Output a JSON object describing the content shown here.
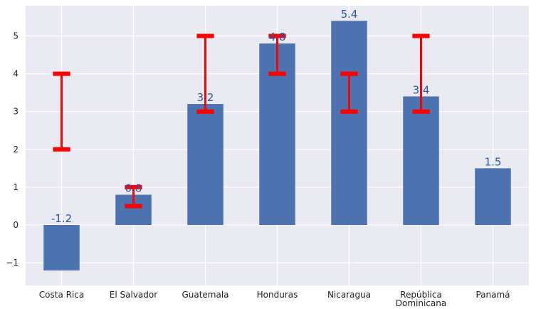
{
  "chart_data": {
    "type": "bar",
    "categories": [
      "Costa Rica",
      "El Salvador",
      "Guatemala",
      "Honduras",
      "Nicaragua",
      "República Dominicana",
      "Panamá"
    ],
    "category_lines": [
      [
        "Costa Rica"
      ],
      [
        "El Salvador"
      ],
      [
        "Guatemala"
      ],
      [
        "Honduras"
      ],
      [
        "Nicaragua"
      ],
      [
        "República",
        "Dominicana"
      ],
      [
        "Panamá"
      ]
    ],
    "values": [
      -1.2,
      0.8,
      3.2,
      4.8,
      5.4,
      3.4,
      1.5
    ],
    "value_labels": [
      "-1.2",
      "0.8",
      "3.2",
      "4.8",
      "5.4",
      "3.4",
      "1.5"
    ],
    "ranges": [
      [
        2,
        4
      ],
      [
        0.5,
        1.0
      ],
      [
        3,
        5
      ],
      [
        4,
        5
      ],
      [
        3,
        4
      ],
      [
        3,
        5
      ],
      null
    ],
    "ylim": [
      -1.6,
      5.8
    ],
    "yticks": [
      -1,
      0,
      1,
      2,
      3,
      4,
      5
    ],
    "ytick_labels": [
      "−1",
      "0",
      "1",
      "2",
      "3",
      "4",
      "5"
    ],
    "title": "",
    "xlabel": "",
    "ylabel": "",
    "grid": true,
    "colors": {
      "bar": "#4c72b0",
      "range": "#ff0000",
      "background": "#eaeaf2",
      "grid": "#ffffff",
      "label": "#2a5aa8"
    }
  }
}
